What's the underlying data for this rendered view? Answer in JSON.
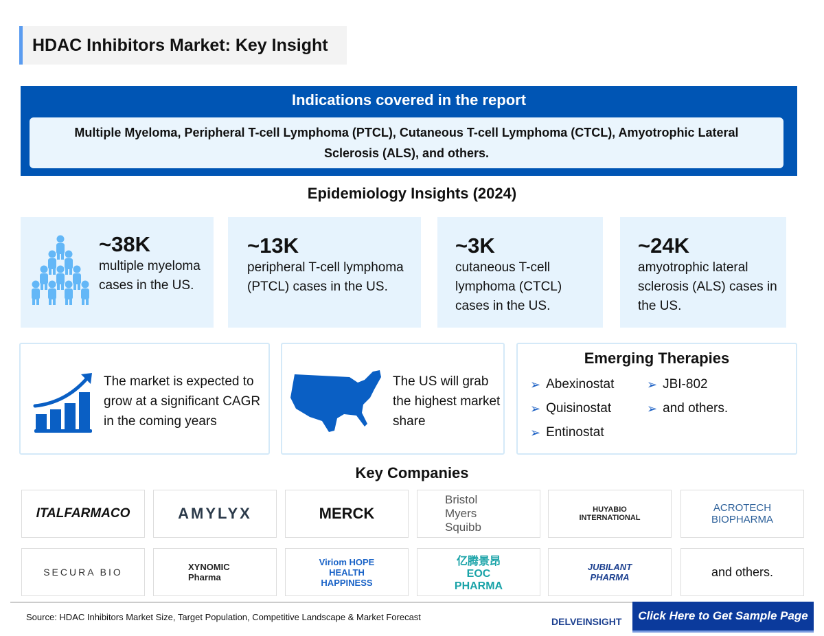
{
  "title": "HDAC Inhibitors Market: Key Insight",
  "indications": {
    "heading": "Indications covered in the report",
    "text": "Multiple Myeloma, Peripheral T-cell Lymphoma (PTCL), Cutaneous T-cell Lymphoma (CTCL), Amyotrophic Lateral Sclerosis (ALS), and others."
  },
  "epidemiology": {
    "heading": "Epidemiology Insights (2024)",
    "stats": [
      {
        "value": "~38K",
        "desc": "multiple myeloma cases in the US."
      },
      {
        "value": "~13K",
        "desc": "peripheral T-cell lymphoma (PTCL) cases in the US."
      },
      {
        "value": "~3K",
        "desc": "cutaneous T-cell lymphoma (CTCL) cases in the US."
      },
      {
        "value": "~24K",
        "desc": "amyotrophic lateral sclerosis (ALS) cases in the US."
      }
    ]
  },
  "market": {
    "growth": "The market is expected to grow at a significant CAGR in the coming years",
    "us": "The US will grab the highest market share"
  },
  "therapies": {
    "heading": "Emerging Therapies",
    "items": [
      "Abexinostat",
      "Quisinostat",
      "Entinostat",
      "JBI-802",
      "and others."
    ]
  },
  "companies": {
    "heading": "Key Companies",
    "logos": [
      "ITALFARMACO",
      "AMYLYX",
      "MERCK",
      "Bristol Myers Squibb",
      "HUYABIO INTERNATIONAL",
      "ACROTECH BIOPHARMA",
      "SECURA BIO",
      "XYNOMIC Pharma",
      "Viriom HOPE HEALTH HAPPINESS",
      "亿腾景昂 EOC PHARMA",
      "JUBILANT PHARMA"
    ],
    "others": "and others."
  },
  "footer": {
    "source": "Source: HDAC Inhibitors Market Size, Target Population, Competitive Landscape & Market Forecast",
    "brand": "DELVEINSIGHT",
    "cta": "Click Here to Get Sample Page"
  },
  "colors": {
    "primary": "#0055b4",
    "light": "#e6f3fd",
    "icon": "#0a5fc4",
    "people": "#63b7f7",
    "cta": "#0b3a9c"
  }
}
